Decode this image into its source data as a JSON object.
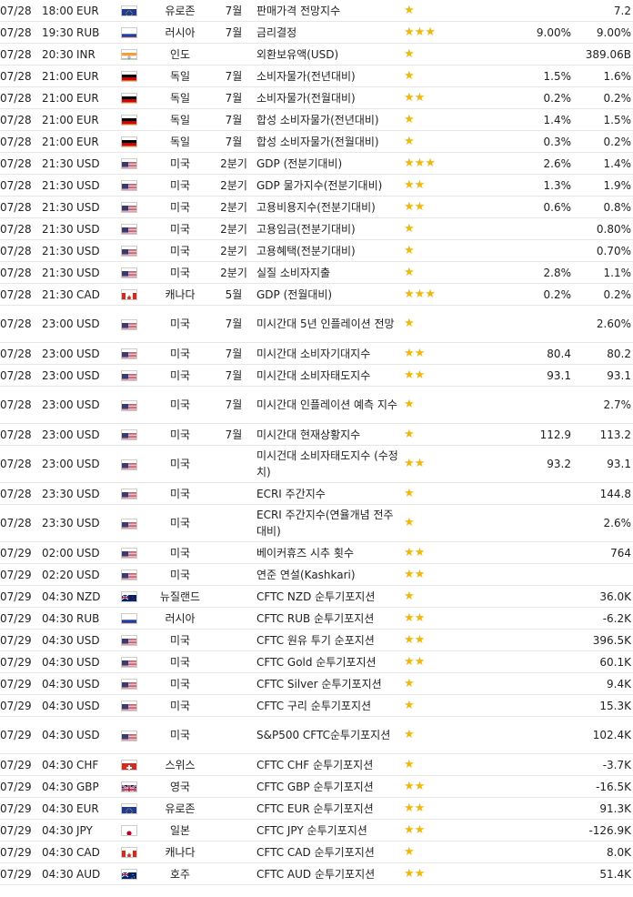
{
  "rows": [
    {
      "date": "07/28",
      "time": "18:00",
      "currency": "EUR",
      "flag": "eu",
      "country": "유로존",
      "period": "7월",
      "event": "판매가격 전망지수",
      "stars": "★",
      "actual": "",
      "forecast": "",
      "previous": "7.2"
    },
    {
      "date": "07/28",
      "time": "19:30",
      "currency": "RUB",
      "flag": "ru",
      "country": "러시아",
      "period": "7월",
      "event": "금리결정",
      "stars": "★★★",
      "actual": "",
      "forecast": "9.00%",
      "previous": "9.00%"
    },
    {
      "date": "07/28",
      "time": "20:30",
      "currency": "INR",
      "flag": "in",
      "country": "인도",
      "period": "",
      "event": "외환보유액(USD)",
      "stars": "★",
      "actual": "",
      "forecast": "",
      "previous": "389.06B"
    },
    {
      "date": "07/28",
      "time": "21:00",
      "currency": "EUR",
      "flag": "de",
      "country": "독일",
      "period": "7월",
      "event": "소비자물가(전년대비)",
      "stars": "★",
      "actual": "",
      "forecast": "1.5%",
      "previous": "1.6%"
    },
    {
      "date": "07/28",
      "time": "21:00",
      "currency": "EUR",
      "flag": "de",
      "country": "독일",
      "period": "7월",
      "event": "소비자물가(전월대비)",
      "stars": "★★",
      "actual": "",
      "forecast": "0.2%",
      "previous": "0.2%"
    },
    {
      "date": "07/28",
      "time": "21:00",
      "currency": "EUR",
      "flag": "de",
      "country": "독일",
      "period": "7월",
      "event": "합성 소비자물가(전년대비)",
      "stars": "★",
      "actual": "",
      "forecast": "1.4%",
      "previous": "1.5%"
    },
    {
      "date": "07/28",
      "time": "21:00",
      "currency": "EUR",
      "flag": "de",
      "country": "독일",
      "period": "7월",
      "event": "합성 소비자물가(전월대비)",
      "stars": "★",
      "actual": "",
      "forecast": "0.3%",
      "previous": "0.2%"
    },
    {
      "date": "07/28",
      "time": "21:30",
      "currency": "USD",
      "flag": "us",
      "country": "미국",
      "period": "2분기",
      "event": "GDP (전분기대비)",
      "stars": "★★★",
      "actual": "",
      "forecast": "2.6%",
      "previous": "1.4%"
    },
    {
      "date": "07/28",
      "time": "21:30",
      "currency": "USD",
      "flag": "us",
      "country": "미국",
      "period": "2분기",
      "event": "GDP 물가지수(전분기대비)",
      "stars": "★★",
      "actual": "",
      "forecast": "1.3%",
      "previous": "1.9%"
    },
    {
      "date": "07/28",
      "time": "21:30",
      "currency": "USD",
      "flag": "us",
      "country": "미국",
      "period": "2분기",
      "event": "고용비용지수(전분기대비)",
      "stars": "★★",
      "actual": "",
      "forecast": "0.6%",
      "previous": "0.8%"
    },
    {
      "date": "07/28",
      "time": "21:30",
      "currency": "USD",
      "flag": "us",
      "country": "미국",
      "period": "2분기",
      "event": "고용임금(전분기대비)",
      "stars": "★",
      "actual": "",
      "forecast": "",
      "previous": "0.80%"
    },
    {
      "date": "07/28",
      "time": "21:30",
      "currency": "USD",
      "flag": "us",
      "country": "미국",
      "period": "2분기",
      "event": "고용혜택(전분기대비)",
      "stars": "★",
      "actual": "",
      "forecast": "",
      "previous": "0.70%"
    },
    {
      "date": "07/28",
      "time": "21:30",
      "currency": "USD",
      "flag": "us",
      "country": "미국",
      "period": "2분기",
      "event": "실질 소비자지출",
      "stars": "★",
      "actual": "",
      "forecast": "2.8%",
      "previous": "1.1%"
    },
    {
      "date": "07/28",
      "time": "21:30",
      "currency": "CAD",
      "flag": "ca",
      "country": "캐나다",
      "period": "5월",
      "event": "GDP (전월대비)",
      "stars": "★★★",
      "actual": "",
      "forecast": "0.2%",
      "previous": "0.2%"
    },
    {
      "date": "07/28",
      "time": "23:00",
      "currency": "USD",
      "flag": "us",
      "country": "미국",
      "period": "7월",
      "event": "미시간대 5년 인플레이션 전망",
      "stars": "★",
      "actual": "",
      "forecast": "",
      "previous": "2.60%",
      "tall": true
    },
    {
      "date": "07/28",
      "time": "23:00",
      "currency": "USD",
      "flag": "us",
      "country": "미국",
      "period": "7월",
      "event": "미시간대 소비자기대지수",
      "stars": "★★",
      "actual": "",
      "forecast": "80.4",
      "previous": "80.2"
    },
    {
      "date": "07/28",
      "time": "23:00",
      "currency": "USD",
      "flag": "us",
      "country": "미국",
      "period": "7월",
      "event": "미시간대 소비자태도지수",
      "stars": "★★",
      "actual": "",
      "forecast": "93.1",
      "previous": "93.1"
    },
    {
      "date": "07/28",
      "time": "23:00",
      "currency": "USD",
      "flag": "us",
      "country": "미국",
      "period": "7월",
      "event": "미시간대 인플레이션 예측 지수",
      "stars": "★",
      "actual": "",
      "forecast": "",
      "previous": "2.7%",
      "tall": true
    },
    {
      "date": "07/28",
      "time": "23:00",
      "currency": "USD",
      "flag": "us",
      "country": "미국",
      "period": "7월",
      "event": "미시간대 현재상황지수",
      "stars": "★",
      "actual": "",
      "forecast": "112.9",
      "previous": "113.2"
    },
    {
      "date": "07/28",
      "time": "23:00",
      "currency": "USD",
      "flag": "us",
      "country": "미국",
      "period": "",
      "event": "미시건대 소비자태도지수 (수정치)",
      "stars": "★★",
      "actual": "",
      "forecast": "93.2",
      "previous": "93.1",
      "tall": true
    },
    {
      "date": "07/28",
      "time": "23:30",
      "currency": "USD",
      "flag": "us",
      "country": "미국",
      "period": "",
      "event": "ECRI 주간지수",
      "stars": "★",
      "actual": "",
      "forecast": "",
      "previous": "144.8"
    },
    {
      "date": "07/28",
      "time": "23:30",
      "currency": "USD",
      "flag": "us",
      "country": "미국",
      "period": "",
      "event": "ECRI 주간지수(연율개념 전주대비)",
      "stars": "★",
      "actual": "",
      "forecast": "",
      "previous": "2.6%",
      "tall": true
    },
    {
      "date": "07/29",
      "time": "02:00",
      "currency": "USD",
      "flag": "us",
      "country": "미국",
      "period": "",
      "event": "베이커휴즈 시추 횟수",
      "stars": "★★",
      "actual": "",
      "forecast": "",
      "previous": "764"
    },
    {
      "date": "07/29",
      "time": "02:20",
      "currency": "USD",
      "flag": "us",
      "country": "미국",
      "period": "",
      "event": "연준 연설(Kashkari)",
      "stars": "★★",
      "actual": "",
      "forecast": "",
      "previous": ""
    },
    {
      "date": "07/29",
      "time": "04:30",
      "currency": "NZD",
      "flag": "nz",
      "country": "뉴질랜드",
      "period": "",
      "event": "CFTC NZD 순투기포지션",
      "stars": "★",
      "actual": "",
      "forecast": "",
      "previous": "36.0K"
    },
    {
      "date": "07/29",
      "time": "04:30",
      "currency": "RUB",
      "flag": "ru",
      "country": "러시아",
      "period": "",
      "event": "CFTC RUB 순투기포지션",
      "stars": "★★",
      "actual": "",
      "forecast": "",
      "previous": "-6.2K"
    },
    {
      "date": "07/29",
      "time": "04:30",
      "currency": "USD",
      "flag": "us",
      "country": "미국",
      "period": "",
      "event": "CFTC 원유 투기 순포지션",
      "stars": "★★",
      "actual": "",
      "forecast": "",
      "previous": "396.5K"
    },
    {
      "date": "07/29",
      "time": "04:30",
      "currency": "USD",
      "flag": "us",
      "country": "미국",
      "period": "",
      "event": "CFTC Gold 순투기포지션",
      "stars": "★★",
      "actual": "",
      "forecast": "",
      "previous": "60.1K"
    },
    {
      "date": "07/29",
      "time": "04:30",
      "currency": "USD",
      "flag": "us",
      "country": "미국",
      "period": "",
      "event": "CFTC Silver 순투기포지션",
      "stars": "★",
      "actual": "",
      "forecast": "",
      "previous": "9.4K"
    },
    {
      "date": "07/29",
      "time": "04:30",
      "currency": "USD",
      "flag": "us",
      "country": "미국",
      "period": "",
      "event": "CFTC 구리 순투기포지션",
      "stars": "★",
      "actual": "",
      "forecast": "",
      "previous": "15.3K"
    },
    {
      "date": "07/29",
      "time": "04:30",
      "currency": "USD",
      "flag": "us",
      "country": "미국",
      "period": "",
      "event": "S&P500 CFTC순투기포지션",
      "stars": "★",
      "actual": "",
      "forecast": "",
      "previous": "102.4K",
      "tall": true
    },
    {
      "date": "07/29",
      "time": "04:30",
      "currency": "CHF",
      "flag": "ch",
      "country": "스위스",
      "period": "",
      "event": "CFTC CHF 순투기포지션",
      "stars": "★",
      "actual": "",
      "forecast": "",
      "previous": "-3.7K"
    },
    {
      "date": "07/29",
      "time": "04:30",
      "currency": "GBP",
      "flag": "gb",
      "country": "영국",
      "period": "",
      "event": "CFTC GBP 순투기포지션",
      "stars": "★★",
      "actual": "",
      "forecast": "",
      "previous": "-16.5K"
    },
    {
      "date": "07/29",
      "time": "04:30",
      "currency": "EUR",
      "flag": "eu",
      "country": "유로존",
      "period": "",
      "event": "CFTC EUR 순투기포지션",
      "stars": "★★",
      "actual": "",
      "forecast": "",
      "previous": "91.3K"
    },
    {
      "date": "07/29",
      "time": "04:30",
      "currency": "JPY",
      "flag": "jp",
      "country": "일본",
      "period": "",
      "event": "CFTC JPY 순투기포지션",
      "stars": "★★",
      "actual": "",
      "forecast": "",
      "previous": "-126.9K"
    },
    {
      "date": "07/29",
      "time": "04:30",
      "currency": "CAD",
      "flag": "ca",
      "country": "캐나다",
      "period": "",
      "event": "CFTC CAD 순투기포지션",
      "stars": "★",
      "actual": "",
      "forecast": "",
      "previous": "8.0K"
    },
    {
      "date": "07/29",
      "time": "04:30",
      "currency": "AUD",
      "flag": "au",
      "country": "호주",
      "period": "",
      "event": "CFTC AUD 순투기포지션",
      "stars": "★★",
      "actual": "",
      "forecast": "",
      "previous": "51.4K"
    }
  ]
}
